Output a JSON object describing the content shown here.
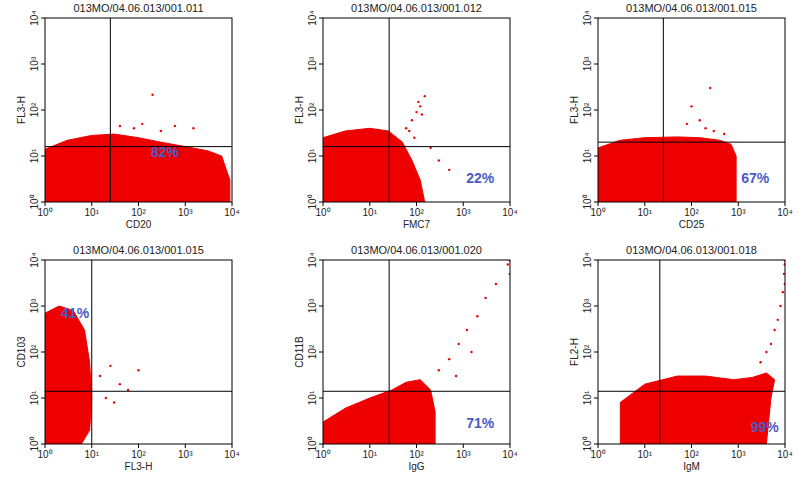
{
  "chart_data": [
    {
      "type": "scatter",
      "title": "013MO/04.06.013/001.011",
      "x_label": "CD20",
      "y_label": "FL3-H",
      "xlim": [
        1,
        10000
      ],
      "ylim": [
        1,
        10000
      ],
      "log": true,
      "xticks": [
        {
          "value": 1,
          "label": "10⁰"
        },
        {
          "value": 10,
          "label": "10¹"
        },
        {
          "value": 100,
          "label": "10²"
        },
        {
          "value": 1000,
          "label": "10³"
        },
        {
          "value": 10000,
          "label": "10⁴"
        }
      ],
      "yticks": [
        {
          "value": 1,
          "label": "10⁰"
        },
        {
          "value": 10,
          "label": "10¹"
        },
        {
          "value": 100,
          "label": "10²"
        },
        {
          "value": 1000,
          "label": "10³"
        },
        {
          "value": 10000,
          "label": "10⁴"
        }
      ],
      "gates": {
        "x": 25,
        "y": 16
      },
      "annotations": [
        {
          "text": "82%",
          "x": 370,
          "y": 12
        }
      ],
      "series": [
        {
          "type": "area",
          "color": "#ee0000",
          "x": [
            1,
            1,
            3,
            10,
            30,
            100,
            300,
            1000,
            3000,
            6000,
            9000,
            9000
          ],
          "values": [
            1,
            14,
            22,
            28,
            30,
            25,
            20,
            16,
            13,
            10,
            3,
            1
          ]
        },
        {
          "type": "scatter",
          "color": "#ee0000",
          "marker": "dot",
          "x": [
            40,
            200,
            600,
            1500,
            80,
            300,
            120
          ],
          "values": [
            45,
            215,
            45,
            40,
            40,
            35,
            50
          ]
        }
      ]
    },
    {
      "type": "scatter",
      "title": "013MO/04.06.013/001.012",
      "x_label": "FMC7",
      "y_label": "FL3-H",
      "xlim": [
        1,
        10000
      ],
      "ylim": [
        1,
        10000
      ],
      "log": true,
      "xticks": [
        {
          "value": 1,
          "label": "10⁰"
        },
        {
          "value": 10,
          "label": "10¹"
        },
        {
          "value": 100,
          "label": "10²"
        },
        {
          "value": 1000,
          "label": "10³"
        },
        {
          "value": 10000,
          "label": "10⁴"
        }
      ],
      "yticks": [
        {
          "value": 1,
          "label": "10⁰"
        },
        {
          "value": 10,
          "label": "10¹"
        },
        {
          "value": 100,
          "label": "10²"
        },
        {
          "value": 1000,
          "label": "10³"
        },
        {
          "value": 10000,
          "label": "10⁴"
        }
      ],
      "gates": {
        "x": 26,
        "y": 16
      },
      "annotations": [
        {
          "text": "22%",
          "x": 2300,
          "y": 3.3
        }
      ],
      "series": [
        {
          "type": "area",
          "color": "#ee0000",
          "x": [
            1,
            1,
            3,
            10,
            25,
            50,
            80,
            120,
            150
          ],
          "values": [
            1,
            25,
            35,
            40,
            35,
            20,
            8,
            3,
            1
          ]
        },
        {
          "type": "scatter",
          "color": "#ee0000",
          "marker": "dot",
          "x": [
            60,
            80,
            100,
            120,
            150,
            70,
            200,
            300,
            500,
            90,
            130,
            110
          ],
          "values": [
            40,
            60,
            90,
            120,
            200,
            35,
            15,
            8,
            5,
            25,
            80,
            150
          ]
        }
      ]
    },
    {
      "type": "scatter",
      "title": "013MO/04.06.013/001.015",
      "x_label": "CD25",
      "y_label": "FL3-H",
      "xlim": [
        1,
        10000
      ],
      "ylim": [
        1,
        10000
      ],
      "log": true,
      "xticks": [
        {
          "value": 1,
          "label": "10⁰"
        },
        {
          "value": 10,
          "label": "10¹"
        },
        {
          "value": 100,
          "label": "10²"
        },
        {
          "value": 1000,
          "label": "10³"
        },
        {
          "value": 10000,
          "label": "10⁴"
        }
      ],
      "yticks": [
        {
          "value": 1,
          "label": "10⁰"
        },
        {
          "value": 10,
          "label": "10¹"
        },
        {
          "value": 100,
          "label": "10²"
        },
        {
          "value": 1000,
          "label": "10³"
        },
        {
          "value": 10000,
          "label": "10⁴"
        }
      ],
      "gates": {
        "x": 25,
        "y": 20
      },
      "annotations": [
        {
          "text": "67%",
          "x": 2300,
          "y": 3.3
        }
      ],
      "series": [
        {
          "type": "area",
          "color": "#ee0000",
          "x": [
            1,
            1,
            3,
            10,
            50,
            150,
            400,
            700,
            900,
            900
          ],
          "values": [
            1,
            15,
            22,
            25,
            26,
            25,
            22,
            18,
            10,
            1
          ]
        },
        {
          "type": "scatter",
          "color": "#ee0000",
          "marker": "dot",
          "x": [
            150,
            100,
            200,
            300,
            80,
            500,
            250
          ],
          "values": [
            60,
            120,
            40,
            35,
            50,
            30,
            300
          ]
        }
      ]
    },
    {
      "type": "scatter",
      "title": "013MO/04.06.013/001.015",
      "x_label": "FL3-H",
      "y_label": "CD103",
      "xlim": [
        1,
        10000
      ],
      "ylim": [
        1,
        10000
      ],
      "log": true,
      "xticks": [
        {
          "value": 1,
          "label": "10⁰"
        },
        {
          "value": 10,
          "label": "10¹"
        },
        {
          "value": 100,
          "label": "10²"
        },
        {
          "value": 1000,
          "label": "10³"
        },
        {
          "value": 10000,
          "label": "10⁴"
        }
      ],
      "yticks": [
        {
          "value": 1,
          "label": "10⁰"
        },
        {
          "value": 10,
          "label": "10¹"
        },
        {
          "value": 100,
          "label": "10²"
        },
        {
          "value": 1000,
          "label": "10³"
        },
        {
          "value": 10000,
          "label": "10⁴"
        }
      ],
      "gates": {
        "x": 10,
        "y": 14
      },
      "annotations": [
        {
          "text": "41%",
          "x": 4.4,
          "y": 720
        }
      ],
      "series": [
        {
          "type": "area",
          "color": "#ee0000",
          "x": [
            1,
            1,
            2,
            4,
            7,
            9,
            10,
            9,
            6
          ],
          "values": [
            1,
            700,
            1000,
            800,
            300,
            60,
            10,
            2,
            1
          ]
        },
        {
          "type": "scatter",
          "color": "#ee0000",
          "marker": "dot",
          "x": [
            15,
            20,
            40,
            60,
            25,
            100,
            30
          ],
          "values": [
            30,
            10,
            20,
            15,
            50,
            40,
            8
          ]
        }
      ]
    },
    {
      "type": "scatter",
      "title": "013MO/04.06.013/001.020",
      "x_label": "IgG",
      "y_label": "CD11B",
      "xlim": [
        1,
        10000
      ],
      "ylim": [
        1,
        10000
      ],
      "log": true,
      "xticks": [
        {
          "value": 1,
          "label": "10⁰"
        },
        {
          "value": 10,
          "label": "10¹"
        },
        {
          "value": 100,
          "label": "10²"
        },
        {
          "value": 1000,
          "label": "10³"
        },
        {
          "value": 10000,
          "label": "10⁴"
        }
      ],
      "yticks": [
        {
          "value": 1,
          "label": "10⁰"
        },
        {
          "value": 10,
          "label": "10¹"
        },
        {
          "value": 100,
          "label": "10²"
        },
        {
          "value": 1000,
          "label": "10³"
        },
        {
          "value": 10000,
          "label": "10⁴"
        }
      ],
      "gates": {
        "x": 26,
        "y": 14
      },
      "annotations": [
        {
          "text": "71%",
          "x": 2300,
          "y": 2.9
        }
      ],
      "series": [
        {
          "type": "area",
          "color": "#ee0000",
          "x": [
            1,
            1,
            3,
            10,
            30,
            60,
            120,
            200,
            250,
            250
          ],
          "values": [
            1,
            3,
            6,
            10,
            15,
            22,
            25,
            15,
            5,
            1
          ]
        },
        {
          "type": "scatter",
          "color": "#ee0000",
          "marker": "dot",
          "x": [
            300,
            500,
            800,
            1200,
            2000,
            3000,
            5000,
            9000,
            9900,
            9900,
            700,
            1500
          ],
          "values": [
            40,
            70,
            150,
            300,
            600,
            1500,
            3000,
            8000,
            9900,
            5000,
            30,
            100
          ]
        }
      ]
    },
    {
      "type": "scatter",
      "title": "013MO/04.06.013/001.018",
      "x_label": "IgM",
      "y_label": "FL2-H",
      "xlim": [
        1,
        10000
      ],
      "ylim": [
        1,
        10000
      ],
      "log": true,
      "xticks": [
        {
          "value": 1,
          "label": "10⁰"
        },
        {
          "value": 10,
          "label": "10¹"
        },
        {
          "value": 100,
          "label": "10²"
        },
        {
          "value": 1000,
          "label": "10³"
        },
        {
          "value": 10000,
          "label": "10⁴"
        }
      ],
      "yticks": [
        {
          "value": 1,
          "label": "10⁰"
        },
        {
          "value": 10,
          "label": "10¹"
        },
        {
          "value": 100,
          "label": "10²"
        },
        {
          "value": 1000,
          "label": "10³"
        },
        {
          "value": 10000,
          "label": "10⁴"
        }
      ],
      "gates": {
        "x": 21,
        "y": 14
      },
      "annotations": [
        {
          "text": "99%",
          "x": 3700,
          "y": 2.3
        }
      ],
      "series": [
        {
          "type": "area",
          "color": "#ee0000",
          "x": [
            3,
            3,
            10,
            50,
            200,
            800,
            2000,
            4000,
            6000,
            5000,
            4000
          ],
          "values": [
            1,
            8,
            20,
            30,
            30,
            25,
            28,
            35,
            25,
            10,
            1
          ]
        },
        {
          "type": "scatter",
          "color": "#ee0000",
          "marker": "dot",
          "x": [
            3000,
            4000,
            5000,
            6000,
            7000,
            8000,
            9000,
            9500,
            9900,
            9900,
            9900
          ],
          "values": [
            60,
            100,
            150,
            300,
            500,
            1000,
            2000,
            5000,
            9900,
            8000,
            3000
          ]
        }
      ]
    }
  ]
}
